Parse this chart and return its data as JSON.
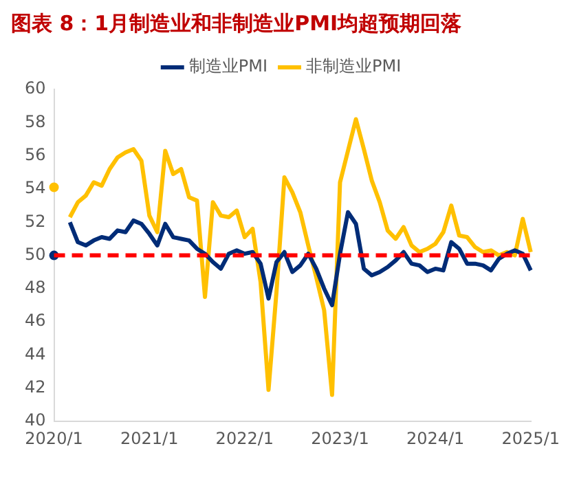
{
  "chart_data": {
    "type": "line",
    "title": "图表 8：1月制造业和非制造业PMI均超预期回落",
    "categories": [
      "2020/1",
      null,
      null,
      null,
      null,
      null,
      null,
      null,
      null,
      null,
      null,
      null,
      "2021/1",
      null,
      null,
      null,
      null,
      null,
      null,
      null,
      null,
      null,
      null,
      null,
      "2022/1",
      null,
      null,
      null,
      null,
      null,
      null,
      null,
      null,
      null,
      null,
      null,
      "2023/1",
      null,
      null,
      null,
      null,
      null,
      null,
      null,
      null,
      null,
      null,
      null,
      "2024/1",
      null,
      null,
      null,
      null,
      null,
      null,
      null,
      null,
      null,
      null,
      null,
      "2025/1"
    ],
    "series": [
      {
        "name": "制造业PMI",
        "color": "#002c77",
        "values": [
          50.0,
          null,
          52.0,
          50.8,
          50.6,
          50.9,
          51.1,
          51.0,
          51.5,
          51.4,
          52.1,
          51.9,
          51.3,
          50.6,
          51.9,
          51.1,
          51.0,
          50.9,
          50.4,
          50.1,
          49.6,
          49.2,
          50.1,
          50.3,
          50.1,
          50.2,
          49.5,
          47.4,
          49.6,
          50.2,
          49.0,
          49.4,
          50.1,
          49.2,
          48.0,
          47.0,
          50.1,
          52.6,
          51.9,
          49.2,
          48.8,
          49.0,
          49.3,
          49.7,
          50.2,
          49.5,
          49.4,
          49.0,
          49.2,
          49.1,
          50.8,
          50.4,
          49.5,
          49.5,
          49.4,
          49.1,
          49.8,
          50.1,
          50.3,
          50.1,
          49.1
        ]
      },
      {
        "name": "非制造业PMI",
        "color": "#ffc000",
        "values": [
          54.1,
          null,
          52.3,
          53.2,
          53.6,
          54.4,
          54.2,
          55.2,
          55.9,
          56.2,
          56.4,
          55.7,
          52.4,
          51.4,
          56.3,
          54.9,
          55.2,
          53.5,
          53.3,
          47.5,
          53.2,
          52.4,
          52.3,
          52.7,
          51.1,
          51.6,
          48.4,
          41.9,
          47.8,
          54.7,
          53.8,
          52.6,
          50.6,
          48.7,
          46.7,
          41.6,
          54.4,
          56.3,
          58.2,
          56.4,
          54.5,
          53.2,
          51.5,
          51.0,
          51.7,
          50.6,
          50.2,
          50.4,
          50.7,
          51.4,
          53.0,
          51.2,
          51.1,
          50.5,
          50.2,
          50.3,
          50.0,
          50.2,
          50.0,
          52.2,
          50.2
        ]
      }
    ],
    "ylim": [
      40,
      60
    ],
    "yticks": [
      40,
      42,
      44,
      46,
      48,
      50,
      52,
      54,
      56,
      58,
      60
    ],
    "ref_lines": [
      {
        "axis": "y",
        "value": 50,
        "color": "#ff0000",
        "line_style": "dashed"
      }
    ],
    "legend": "top",
    "marker": "none",
    "line_style": "solid"
  }
}
